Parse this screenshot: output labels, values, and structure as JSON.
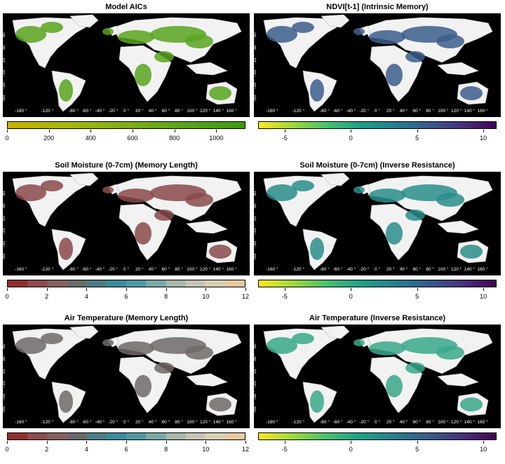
{
  "panels": [
    {
      "title": "Model AICs",
      "palette": "aic",
      "land": "#58a41e",
      "legend": {
        "min": 0,
        "max": 1140,
        "ticks": [
          0,
          200,
          400,
          600,
          800,
          1000
        ],
        "colors": [
          "#c9b000",
          "#a6b80d",
          "#7fae18",
          "#58a41e",
          "#3b9a12"
        ]
      }
    },
    {
      "title": "NDVI[t-1] (Intrinsic Memory)",
      "palette": "viridis",
      "land": "#3c5e8c",
      "legend": {
        "min": -7,
        "max": 11,
        "ticks": [
          -5,
          0,
          5,
          10
        ],
        "colors": [
          "#fde725",
          "#a0da39",
          "#4ac16d",
          "#1fa187",
          "#277f8e",
          "#365c8d",
          "#46327e",
          "#440154"
        ]
      }
    },
    {
      "title": "Soil Moisture (0-7cm) (Memory Length)",
      "palette": "diverging",
      "land": "#8a4a4a",
      "legend": {
        "min": 0,
        "max": 12,
        "ticks": [
          0,
          2,
          4,
          6,
          8,
          10,
          12
        ],
        "colors": [
          "#8f2e2e",
          "#8e4a4a",
          "#86605f",
          "#6a6a6a",
          "#4e7c86",
          "#3a8c9a",
          "#4e9aa3",
          "#7aa9aa",
          "#a8b8ab",
          "#c7c4b3",
          "#d8cfb4",
          "#e8c9a0"
        ]
      }
    },
    {
      "title": "Soil Moisture (0-7cm) (Inverse Resistance)",
      "palette": "viridis",
      "land": "#2a8e8c",
      "legend": {
        "min": -7,
        "max": 11,
        "ticks": [
          -5,
          0,
          5,
          10
        ],
        "colors": [
          "#fde725",
          "#a0da39",
          "#4ac16d",
          "#1fa187",
          "#277f8e",
          "#365c8d",
          "#46327e",
          "#440154"
        ]
      }
    },
    {
      "title": "Air Temperature (Memory Length)",
      "palette": "diverging",
      "land": "#6e6a6a",
      "legend": {
        "min": 0,
        "max": 12,
        "ticks": [
          0,
          2,
          4,
          6,
          8,
          10,
          12
        ],
        "colors": [
          "#8f2e2e",
          "#8e4a4a",
          "#86605f",
          "#6a6a6a",
          "#4e7c86",
          "#3a8c9a",
          "#4e9aa3",
          "#7aa9aa",
          "#a8b8ab",
          "#c7c4b3",
          "#d8cfb4",
          "#e8c9a0"
        ]
      }
    },
    {
      "title": "Air Temperature (Inverse Resistance)",
      "palette": "viridis",
      "land": "#3aa88a",
      "legend": {
        "min": -7,
        "max": 11,
        "ticks": [
          -5,
          0,
          5,
          10
        ],
        "colors": [
          "#fde725",
          "#a0da39",
          "#4ac16d",
          "#1fa187",
          "#277f8e",
          "#365c8d",
          "#46327e",
          "#440154"
        ]
      }
    }
  ],
  "map_axes": {
    "lon_ticks": [
      -160,
      -120,
      -80,
      -60,
      -40,
      -20,
      0,
      20,
      40,
      60,
      80,
      100,
      120,
      140,
      160
    ],
    "lat_ticks": [
      50,
      30,
      10,
      -10,
      -30,
      -50
    ],
    "lon_suffix": " °",
    "lat_suffix": " °"
  },
  "colors": {
    "background": "#000000",
    "landmass": "#f2f2f2"
  }
}
